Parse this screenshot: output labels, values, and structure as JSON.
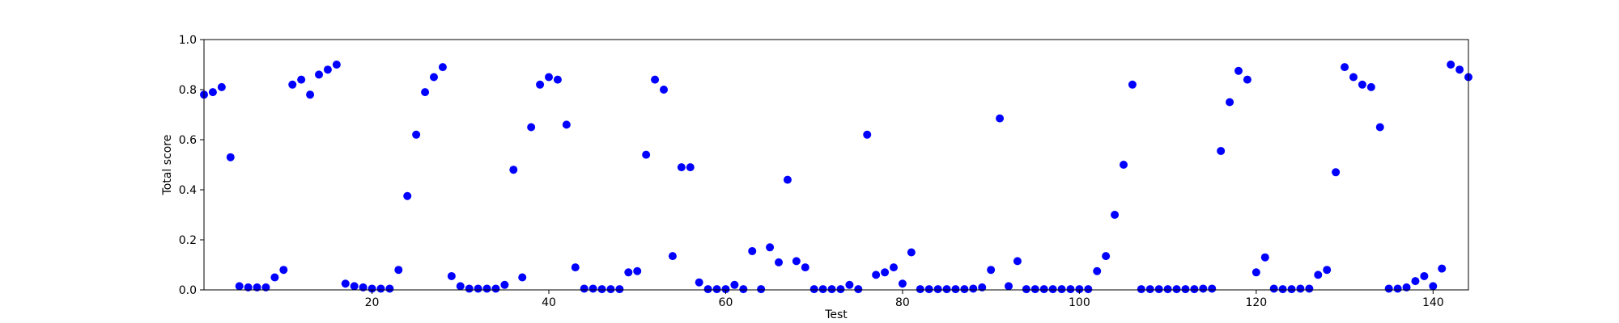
{
  "chart_data": {
    "type": "scatter",
    "xlabel": "Test",
    "ylabel": "Total score",
    "xlim": [
      1,
      144
    ],
    "ylim": [
      0,
      1.0
    ],
    "xticks": [
      20,
      40,
      60,
      80,
      100,
      120,
      140
    ],
    "yticks": [
      0.0,
      0.2,
      0.4,
      0.6,
      0.8,
      1.0
    ],
    "ytick_labels": [
      "0.0",
      "0.2",
      "0.4",
      "0.6",
      "0.8",
      "1.0"
    ],
    "grid": false,
    "marker_color": "#0000ff",
    "series": [
      {
        "x": [
          1,
          2,
          3,
          4,
          5,
          6,
          7,
          8,
          9,
          10,
          11,
          12,
          13,
          14,
          15,
          16,
          17,
          18,
          19,
          20,
          21,
          22,
          23,
          24,
          25,
          26,
          27,
          28,
          29,
          30,
          31,
          32,
          33,
          34,
          35,
          36,
          37,
          38,
          39,
          40,
          41,
          42,
          43,
          44,
          45,
          46,
          47,
          48,
          49,
          50,
          51,
          52,
          53,
          54,
          55,
          56,
          57,
          58,
          59,
          60,
          61,
          62,
          63,
          64,
          65,
          66,
          67,
          68,
          69,
          70,
          71,
          72,
          73,
          74,
          75,
          76,
          77,
          78,
          79,
          80,
          81,
          82,
          83,
          84,
          85,
          86,
          87,
          88,
          89,
          90,
          91,
          92,
          93,
          94,
          95,
          96,
          97,
          98,
          99,
          100,
          101,
          102,
          103,
          104,
          105,
          106,
          107,
          108,
          109,
          110,
          111,
          112,
          113,
          114,
          115,
          116,
          117,
          118,
          119,
          120,
          121,
          122,
          123,
          124,
          125,
          126,
          127,
          128,
          129,
          130,
          131,
          132,
          133,
          134,
          135,
          136,
          137,
          138,
          139,
          140,
          141,
          142,
          143,
          144
        ],
        "y": [
          0.78,
          0.79,
          0.81,
          0.53,
          0.015,
          0.01,
          0.01,
          0.01,
          0.05,
          0.08,
          0.82,
          0.84,
          0.78,
          0.86,
          0.88,
          0.9,
          0.025,
          0.015,
          0.01,
          0.005,
          0.005,
          0.005,
          0.08,
          0.375,
          0.62,
          0.79,
          0.85,
          0.89,
          0.055,
          0.015,
          0.005,
          0.005,
          0.005,
          0.005,
          0.02,
          0.48,
          0.05,
          0.65,
          0.82,
          0.85,
          0.84,
          0.66,
          0.09,
          0.005,
          0.005,
          0.003,
          0.003,
          0.003,
          0.07,
          0.075,
          0.54,
          0.84,
          0.8,
          0.135,
          0.49,
          0.49,
          0.03,
          0.003,
          0.003,
          0.003,
          0.02,
          0.003,
          0.155,
          0.003,
          0.17,
          0.11,
          0.44,
          0.115,
          0.09,
          0.003,
          0.003,
          0.003,
          0.003,
          0.02,
          0.003,
          0.62,
          0.06,
          0.07,
          0.09,
          0.025,
          0.15,
          0.003,
          0.003,
          0.003,
          0.003,
          0.003,
          0.003,
          0.005,
          0.01,
          0.08,
          0.685,
          0.015,
          0.115,
          0.003,
          0.003,
          0.003,
          0.003,
          0.003,
          0.003,
          0.003,
          0.003,
          0.075,
          0.135,
          0.3,
          0.5,
          0.82,
          0.003,
          0.003,
          0.003,
          0.003,
          0.003,
          0.003,
          0.003,
          0.005,
          0.005,
          0.555,
          0.75,
          0.875,
          0.84,
          0.07,
          0.13,
          0.005,
          0.003,
          0.003,
          0.005,
          0.005,
          0.06,
          0.08,
          0.47,
          0.89,
          0.85,
          0.82,
          0.81,
          0.65,
          0.005,
          0.005,
          0.01,
          0.035,
          0.055,
          0.015,
          0.085,
          0.9,
          0.88,
          0.85
        ]
      }
    ]
  }
}
